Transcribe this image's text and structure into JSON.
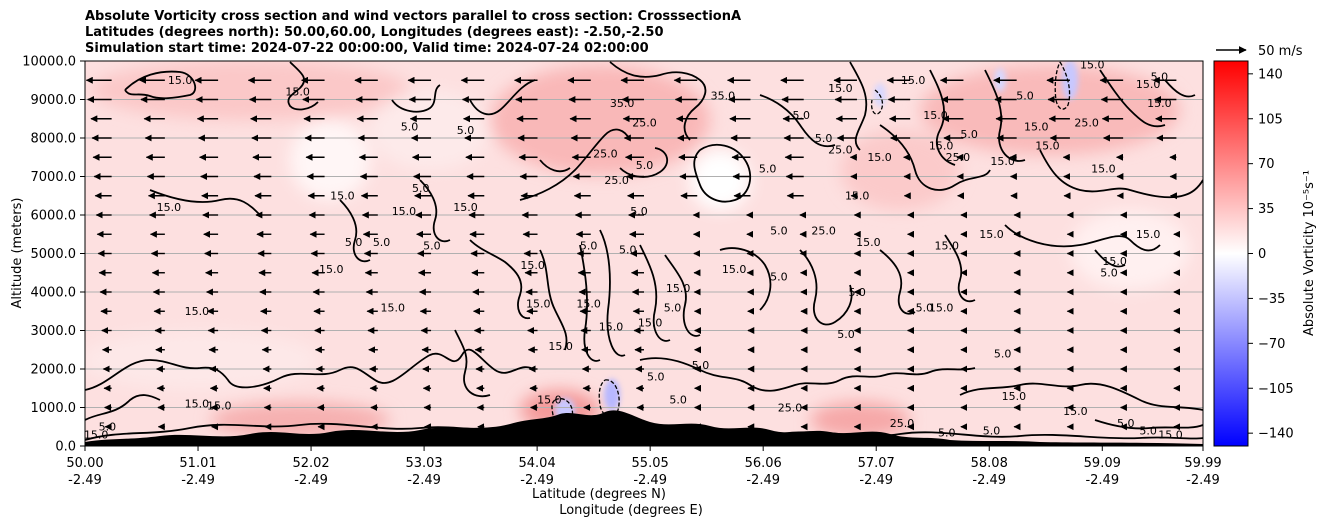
{
  "chart_data": {
    "type": "heatmap",
    "title_lines": [
      "Absolute Vorticity cross section and wind vectors parallel to cross section: CrosssectionA",
      "Latitudes (degrees north): 50.00,60.00, Longitudes (degrees east): -2.50,-2.50",
      "Simulation start time: 2024-07-22 00:00:00, Valid time: 2024-07-24 02:00:00"
    ],
    "ylabel": "Altitude (meters)",
    "xlabel_lines": [
      "Latitude (degrees N)",
      "Longitude (degrees E)"
    ],
    "ylim": [
      0,
      10000
    ],
    "y_ticks": [
      "0.0",
      "1000.0",
      "2000.0",
      "3000.0",
      "4000.0",
      "5000.0",
      "6000.0",
      "7000.0",
      "8000.0",
      "9000.0",
      "10000.0"
    ],
    "y_tick_values": [
      0,
      1000,
      2000,
      3000,
      4000,
      5000,
      6000,
      7000,
      8000,
      9000,
      10000
    ],
    "xlim": [
      50.0,
      59.99
    ],
    "x_ticks_lat": [
      "50.00",
      "51.01",
      "52.02",
      "53.03",
      "54.04",
      "55.05",
      "56.06",
      "57.07",
      "58.08",
      "59.09",
      "59.99"
    ],
    "x_tick_lat_values": [
      50.0,
      51.01,
      52.02,
      53.03,
      54.04,
      55.05,
      56.06,
      57.07,
      58.08,
      59.09,
      59.99
    ],
    "x_ticks_lon": [
      "-2.49",
      "-2.49",
      "-2.49",
      "-2.49",
      "-2.49",
      "-2.49",
      "-2.49",
      "-2.49",
      "-2.49",
      "-2.49",
      "-2.49"
    ],
    "horizontal_grid": true,
    "colorbar": {
      "label": "Absolute Vorticity 10⁻⁵s⁻¹",
      "range": [
        -150,
        150
      ],
      "ticks": [
        "140",
        "105",
        "70",
        "35",
        "0",
        "−35",
        "−70",
        "−105",
        "−140"
      ],
      "tick_values": [
        140,
        105,
        70,
        35,
        0,
        -35,
        -70,
        -105,
        -140
      ],
      "colormap": "bwr"
    },
    "quiver_key": {
      "label": "50 m/s",
      "speed": 50
    },
    "contour_levels": [
      5.0,
      15.0,
      25.0,
      35.0
    ],
    "contour_labels": [
      {
        "text": "15.0",
        "lat": 50.75,
        "alt": 6100
      },
      {
        "text": "15.0",
        "lat": 50.85,
        "alt": 9400
      },
      {
        "text": "15.0",
        "lat": 51.9,
        "alt": 9100
      },
      {
        "text": "5.0",
        "lat": 52.9,
        "alt": 8200
      },
      {
        "text": "5.0",
        "lat": 53.4,
        "alt": 8100
      },
      {
        "text": "35.0",
        "lat": 55.7,
        "alt": 9000
      },
      {
        "text": "35.0",
        "lat": 54.8,
        "alt": 8800
      },
      {
        "text": "25.0",
        "lat": 55.0,
        "alt": 8300
      },
      {
        "text": "25.0",
        "lat": 54.65,
        "alt": 7500
      },
      {
        "text": "5.0",
        "lat": 55.0,
        "alt": 7200
      },
      {
        "text": "5.0",
        "lat": 53.0,
        "alt": 6600
      },
      {
        "text": "15.0",
        "lat": 52.3,
        "alt": 6400
      },
      {
        "text": "15.0",
        "lat": 52.85,
        "alt": 6000
      },
      {
        "text": "15.0",
        "lat": 53.4,
        "alt": 6100
      },
      {
        "text": "25.0",
        "lat": 54.75,
        "alt": 6800
      },
      {
        "text": "5.0",
        "lat": 54.95,
        "alt": 6000
      },
      {
        "text": "5.0",
        "lat": 52.4,
        "alt": 5200
      },
      {
        "text": "5.0",
        "lat": 52.65,
        "alt": 5200
      },
      {
        "text": "5.0",
        "lat": 53.1,
        "alt": 5100
      },
      {
        "text": "15.0",
        "lat": 52.2,
        "alt": 4500
      },
      {
        "text": "15.0",
        "lat": 54.0,
        "alt": 4600
      },
      {
        "text": "5.0",
        "lat": 54.5,
        "alt": 5100
      },
      {
        "text": "5.0",
        "lat": 54.85,
        "alt": 5000
      },
      {
        "text": "15.0",
        "lat": 55.8,
        "alt": 4500
      },
      {
        "text": "15.0",
        "lat": 55.3,
        "alt": 4000
      },
      {
        "text": "5.0",
        "lat": 55.25,
        "alt": 3500
      },
      {
        "text": "15.0",
        "lat": 55.05,
        "alt": 3100
      },
      {
        "text": "15.0",
        "lat": 54.5,
        "alt": 3600
      },
      {
        "text": "15.0",
        "lat": 54.7,
        "alt": 3000
      },
      {
        "text": "15.0",
        "lat": 54.05,
        "alt": 3600
      },
      {
        "text": "15.0",
        "lat": 54.25,
        "alt": 2500
      },
      {
        "text": "15.0",
        "lat": 51.0,
        "alt": 3400
      },
      {
        "text": "15.0",
        "lat": 52.75,
        "alt": 3500
      },
      {
        "text": "5.0",
        "lat": 56.2,
        "alt": 5500
      },
      {
        "text": "5.0",
        "lat": 56.2,
        "alt": 4300
      },
      {
        "text": "25.0",
        "lat": 56.6,
        "alt": 5500
      },
      {
        "text": "15.0",
        "lat": 57.0,
        "alt": 5200
      },
      {
        "text": "5.0",
        "lat": 56.9,
        "alt": 3900
      },
      {
        "text": "15.0",
        "lat": 57.65,
        "alt": 3500
      },
      {
        "text": "5.0",
        "lat": 56.8,
        "alt": 2800
      },
      {
        "text": "5.0",
        "lat": 57.5,
        "alt": 3500
      },
      {
        "text": "5.0",
        "lat": 58.2,
        "alt": 2300
      },
      {
        "text": "15.0",
        "lat": 57.7,
        "alt": 5100
      },
      {
        "text": "15.0",
        "lat": 58.1,
        "alt": 5400
      },
      {
        "text": "15.0",
        "lat": 59.5,
        "alt": 5400
      },
      {
        "text": "15.0",
        "lat": 58.2,
        "alt": 7300
      },
      {
        "text": "25.0",
        "lat": 57.8,
        "alt": 7400
      },
      {
        "text": "15.0",
        "lat": 57.65,
        "alt": 7700
      },
      {
        "text": "5.0",
        "lat": 57.9,
        "alt": 8000
      },
      {
        "text": "15.0",
        "lat": 58.5,
        "alt": 8200
      },
      {
        "text": "25.0",
        "lat": 58.95,
        "alt": 8300
      },
      {
        "text": "15.0",
        "lat": 58.6,
        "alt": 7700
      },
      {
        "text": "15.0",
        "lat": 59.1,
        "alt": 7100
      },
      {
        "text": "5.0",
        "lat": 58.4,
        "alt": 9000
      },
      {
        "text": "15.0",
        "lat": 59.6,
        "alt": 8800
      },
      {
        "text": "15.0",
        "lat": 57.6,
        "alt": 8500
      },
      {
        "text": "15.0",
        "lat": 57.4,
        "alt": 9400
      },
      {
        "text": "5.0",
        "lat": 56.6,
        "alt": 7900
      },
      {
        "text": "15.0",
        "lat": 56.9,
        "alt": 6400
      },
      {
        "text": "15.0",
        "lat": 57.1,
        "alt": 7400
      },
      {
        "text": "25.0",
        "lat": 56.75,
        "alt": 7600
      },
      {
        "text": "5.0",
        "lat": 56.1,
        "alt": 7100
      },
      {
        "text": "5.0",
        "lat": 56.4,
        "alt": 8500
      },
      {
        "text": "15.0",
        "lat": 56.75,
        "alt": 9200
      },
      {
        "text": "15.0",
        "lat": 59.2,
        "alt": 4700
      },
      {
        "text": "5.0",
        "lat": 59.15,
        "alt": 4400
      },
      {
        "text": "15.0",
        "lat": 59.5,
        "alt": 9300
      },
      {
        "text": "5.0",
        "lat": 59.6,
        "alt": 9500
      },
      {
        "text": "15.0",
        "lat": 59.0,
        "alt": 9800
      },
      {
        "text": "15.0",
        "lat": 58.3,
        "alt": 1200
      },
      {
        "text": "15.0",
        "lat": 58.85,
        "alt": 800
      },
      {
        "text": "5.0",
        "lat": 59.3,
        "alt": 500
      },
      {
        "text": "5.0",
        "lat": 59.5,
        "alt": 300
      },
      {
        "text": "15.0",
        "lat": 59.7,
        "alt": 200
      },
      {
        "text": "5.0",
        "lat": 55.3,
        "alt": 1100
      },
      {
        "text": "5.0",
        "lat": 55.5,
        "alt": 2000
      },
      {
        "text": "15.0",
        "lat": 54.15,
        "alt": 1100
      },
      {
        "text": "15.0",
        "lat": 51.0,
        "alt": 1000
      },
      {
        "text": "15.0",
        "lat": 51.2,
        "alt": 950
      },
      {
        "text": "5.0",
        "lat": 50.2,
        "alt": 400
      },
      {
        "text": "15.0",
        "lat": 50.1,
        "alt": 200
      },
      {
        "text": "25.0",
        "lat": 56.3,
        "alt": 900
      },
      {
        "text": "25.0",
        "lat": 57.3,
        "alt": 500
      },
      {
        "text": "5.0",
        "lat": 57.7,
        "alt": 250
      },
      {
        "text": "5.0",
        "lat": 58.1,
        "alt": 300
      },
      {
        "text": "5.0",
        "lat": 55.1,
        "alt": 1700
      },
      {
        "text": "15.0",
        "lat": 53.3,
        "alt": 200
      },
      {
        "text": "5.0",
        "lat": 52.9,
        "alt": 150
      },
      {
        "text": "5.0",
        "lat": 53.5,
        "alt": 150
      }
    ]
  },
  "colors": {
    "positive": "#ff0000",
    "zero": "#ffffff",
    "negative": "#0000ff",
    "contour": "#000000",
    "grid": "#b0b0b0"
  }
}
